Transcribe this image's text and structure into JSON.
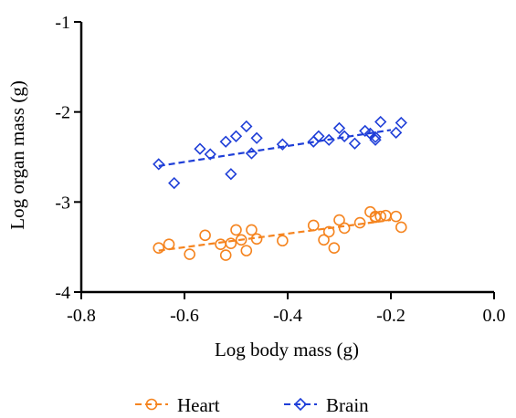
{
  "chart_data": {
    "type": "scatter",
    "title": "",
    "xlabel": "Log body mass (g)",
    "ylabel": "Log organ mass (g)",
    "xlim": [
      -0.8,
      0.0
    ],
    "ylim": [
      -4,
      -1
    ],
    "x_ticks": [
      "-0.8",
      "-0.6",
      "-0.4",
      "-0.2",
      "0.0"
    ],
    "y_ticks": [
      "-1",
      "-2",
      "-3",
      "-4"
    ],
    "grid": false,
    "legend_position": "bottom",
    "series": [
      {
        "name": "Heart",
        "marker": "circle",
        "color": "#F5841F",
        "points": [
          [
            -0.65,
            -3.51
          ],
          [
            -0.63,
            -3.47
          ],
          [
            -0.59,
            -3.58
          ],
          [
            -0.56,
            -3.37
          ],
          [
            -0.53,
            -3.47
          ],
          [
            -0.52,
            -3.59
          ],
          [
            -0.51,
            -3.46
          ],
          [
            -0.5,
            -3.31
          ],
          [
            -0.49,
            -3.42
          ],
          [
            -0.48,
            -3.54
          ],
          [
            -0.47,
            -3.31
          ],
          [
            -0.46,
            -3.41
          ],
          [
            -0.41,
            -3.43
          ],
          [
            -0.35,
            -3.26
          ],
          [
            -0.33,
            -3.42
          ],
          [
            -0.32,
            -3.33
          ],
          [
            -0.31,
            -3.51
          ],
          [
            -0.3,
            -3.2
          ],
          [
            -0.29,
            -3.29
          ],
          [
            -0.26,
            -3.23
          ],
          [
            -0.24,
            -3.11
          ],
          [
            -0.23,
            -3.16
          ],
          [
            -0.23,
            -3.17
          ],
          [
            -0.22,
            -3.16
          ],
          [
            -0.21,
            -3.15
          ],
          [
            -0.19,
            -3.16
          ],
          [
            -0.18,
            -3.28
          ]
        ],
        "trend": [
          [
            -0.65,
            -3.54
          ],
          [
            -0.2,
            -3.2
          ]
        ]
      },
      {
        "name": "Brain",
        "marker": "diamond",
        "color": "#1F3FD8",
        "points": [
          [
            -0.65,
            -2.58
          ],
          [
            -0.62,
            -2.79
          ],
          [
            -0.57,
            -2.41
          ],
          [
            -0.55,
            -2.47
          ],
          [
            -0.52,
            -2.33
          ],
          [
            -0.51,
            -2.69
          ],
          [
            -0.5,
            -2.27
          ],
          [
            -0.48,
            -2.16
          ],
          [
            -0.47,
            -2.46
          ],
          [
            -0.46,
            -2.29
          ],
          [
            -0.41,
            -2.36
          ],
          [
            -0.35,
            -2.33
          ],
          [
            -0.34,
            -2.27
          ],
          [
            -0.32,
            -2.31
          ],
          [
            -0.3,
            -2.18
          ],
          [
            -0.29,
            -2.27
          ],
          [
            -0.27,
            -2.35
          ],
          [
            -0.25,
            -2.21
          ],
          [
            -0.24,
            -2.24
          ],
          [
            -0.23,
            -2.28
          ],
          [
            -0.23,
            -2.31
          ],
          [
            -0.22,
            -2.11
          ],
          [
            -0.19,
            -2.23
          ],
          [
            -0.18,
            -2.12
          ]
        ],
        "trend": [
          [
            -0.65,
            -2.6
          ],
          [
            -0.2,
            -2.2
          ]
        ]
      }
    ]
  }
}
